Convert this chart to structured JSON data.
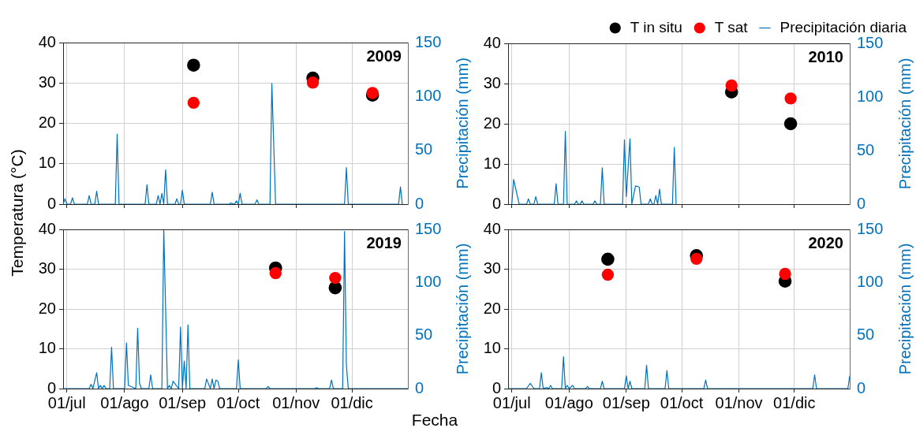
{
  "chart_data": [
    {
      "type": "scatter",
      "title": "2009",
      "y2label": "Precipitación (mm)",
      "xlim": [
        "--06-29",
        "--12-31"
      ],
      "xticks": [
        {
          "value": "--07-01",
          "label": "01/jul"
        },
        {
          "value": "--08-01",
          "label": "01/ago"
        },
        {
          "value": "--09-01",
          "label": "01/sep"
        },
        {
          "value": "--10-01",
          "label": "01/oct"
        },
        {
          "value": "--11-01",
          "label": "01/nov"
        },
        {
          "value": "--12-01",
          "label": "01/dic"
        }
      ],
      "ylim": [
        0,
        40
      ],
      "yticks": [
        0,
        10,
        20,
        30,
        40
      ],
      "y2lim": [
        0,
        150
      ],
      "y2ticks": [
        0,
        50,
        100,
        150
      ],
      "grid": true,
      "marker": "circle",
      "tick_labels": "y",
      "series": [
        {
          "type": "scatter",
          "color": "#000000",
          "x": [
            "--09-07",
            "--11-10",
            "--12-12"
          ],
          "values": [
            34.4,
            31.2,
            27.0
          ]
        },
        {
          "type": "scatter",
          "color": "#ff0000",
          "x": [
            "--09-07",
            "--11-10",
            "--12-12"
          ],
          "values": [
            25.1,
            30.1,
            27.5
          ]
        },
        {
          "type": "line",
          "axis": "y2",
          "marker": "none",
          "color": "#0072bd",
          "x": [
            "--06-29",
            "--06-30",
            "--07-01",
            "--07-03",
            "--07-04",
            "--07-05",
            "--07-12",
            "--07-13",
            "--07-14",
            "--07-16",
            "--07-17",
            "--07-18",
            "--07-27",
            "--07-28",
            "--07-29",
            "--08-12",
            "--08-13",
            "--08-14",
            "--08-18",
            "--08-19",
            "--08-20",
            "--08-21",
            "--08-22",
            "--08-23",
            "--08-24",
            "--08-28",
            "--08-29",
            "--08-30",
            "--08-31",
            "--09-01",
            "--09-02",
            "--09-16",
            "--09-17",
            "--09-18",
            "--09-26",
            "--09-27",
            "--09-29",
            "--09-30",
            "--10-01",
            "--10-02",
            "--10-03",
            "--10-10",
            "--10-11",
            "--10-12",
            "--10-18",
            "--10-19",
            "--10-21",
            "--11-27",
            "--11-28",
            "--11-29",
            "--12-26",
            "--12-27",
            "--12-28"
          ],
          "values": [
            0,
            5,
            0,
            0,
            6,
            0,
            0,
            8,
            0,
            0,
            12,
            0,
            0,
            65,
            0,
            0,
            18,
            0,
            0,
            8,
            0,
            10,
            0,
            32,
            0,
            0,
            5,
            0,
            0,
            13,
            0,
            0,
            11,
            0,
            0,
            1,
            0,
            3,
            0,
            10,
            0,
            0,
            4,
            0,
            0,
            112,
            0,
            0,
            34,
            0,
            0,
            16,
            0
          ]
        }
      ]
    },
    {
      "type": "scatter",
      "title": "2010",
      "y2label": "Precipitación (mm)",
      "legend": "top right",
      "xlim": [
        "--06-29",
        "--12-31"
      ],
      "xticks": [
        {
          "value": "--07-01",
          "label": "01/jul"
        },
        {
          "value": "--08-01",
          "label": "01/ago"
        },
        {
          "value": "--09-01",
          "label": "01/sep"
        },
        {
          "value": "--10-01",
          "label": "01/oct"
        },
        {
          "value": "--11-01",
          "label": "01/nov"
        },
        {
          "value": "--12-01",
          "label": "01/dic"
        }
      ],
      "ylim": [
        0,
        40
      ],
      "yticks": [
        0,
        10,
        20,
        30,
        40
      ],
      "y2lim": [
        0,
        150
      ],
      "y2ticks": [
        0,
        50,
        100,
        150
      ],
      "grid": true,
      "marker": "circle",
      "tick_labels": "y",
      "series": [
        {
          "type": "scatter",
          "name": "T in situ",
          "color": "#000000",
          "x": [
            "--10-28",
            "--11-29"
          ],
          "values": [
            27.9,
            20.0
          ]
        },
        {
          "type": "scatter",
          "name": "T sat",
          "color": "#ff0000",
          "x": [
            "--10-28",
            "--11-29"
          ],
          "values": [
            29.5,
            26.3
          ]
        },
        {
          "type": "line",
          "name": "Precipitación diaria",
          "axis": "y2",
          "marker": "none",
          "color": "#0072bd",
          "x": [
            "--07-01",
            "--07-02",
            "--07-05",
            "--07-09",
            "--07-10",
            "--07-11",
            "--07-13",
            "--07-14",
            "--07-15",
            "--07-24",
            "--07-25",
            "--07-26",
            "--07-29",
            "--07-30",
            "--07-31",
            "--08-04",
            "--08-05",
            "--08-06",
            "--08-07",
            "--08-08",
            "--08-09",
            "--08-14",
            "--08-15",
            "--08-16",
            "--08-18",
            "--08-19",
            "--08-20",
            "--08-30",
            "--08-31",
            "--09-01",
            "--09-03",
            "--09-04",
            "--09-06",
            "--09-08",
            "--09-09",
            "--09-13",
            "--09-14",
            "--09-15",
            "--09-16",
            "--09-17",
            "--09-18",
            "--09-19",
            "--09-20",
            "--09-26",
            "--09-27",
            "--09-28"
          ],
          "values": [
            0,
            23,
            0,
            0,
            5,
            0,
            0,
            7,
            0,
            0,
            19,
            0,
            0,
            68,
            0,
            0,
            3,
            0,
            0,
            3,
            0,
            0,
            3,
            0,
            0,
            34,
            0,
            0,
            60,
            7,
            61,
            0,
            17,
            16,
            0,
            0,
            5,
            0,
            0,
            8,
            0,
            14,
            0,
            0,
            53,
            0
          ]
        }
      ]
    },
    {
      "type": "scatter",
      "title": "2019",
      "ylabel": "Temperatura (°C)",
      "xlabel": "Fecha",
      "y2label": "Precipitación (mm)",
      "xlim": [
        "--06-29",
        "--12-31"
      ],
      "xticks": [
        {
          "value": "--07-01",
          "label": "01/jul"
        },
        {
          "value": "--08-01",
          "label": "01/ago"
        },
        {
          "value": "--09-01",
          "label": "01/sep"
        },
        {
          "value": "--10-01",
          "label": "01/oct"
        },
        {
          "value": "--11-01",
          "label": "01/nov"
        },
        {
          "value": "--12-01",
          "label": "01/dic"
        }
      ],
      "ylim": [
        0,
        40
      ],
      "yticks": [
        0,
        10,
        20,
        30,
        40
      ],
      "y2lim": [
        0,
        150
      ],
      "y2ticks": [
        0,
        50,
        100,
        150
      ],
      "grid": true,
      "marker": "circle",
      "series": [
        {
          "type": "scatter",
          "color": "#000000",
          "x": [
            "--10-21",
            "--11-22"
          ],
          "values": [
            30.3,
            25.3
          ]
        },
        {
          "type": "scatter",
          "color": "#ff0000",
          "x": [
            "--10-21",
            "--11-22"
          ],
          "values": [
            29.0,
            27.8
          ]
        },
        {
          "type": "line",
          "axis": "y2",
          "marker": "none",
          "color": "#0072bd",
          "x": [
            "--06-29",
            "--07-13",
            "--07-14",
            "--07-15",
            "--07-17",
            "--07-18",
            "--07-19",
            "--07-20",
            "--07-21",
            "--07-22",
            "--07-24",
            "--07-25",
            "--07-26",
            "--08-01",
            "--08-02",
            "--08-03",
            "--08-07",
            "--08-08",
            "--08-09",
            "--08-10",
            "--08-14",
            "--08-15",
            "--08-16",
            "--08-21",
            "--08-22",
            "--08-24",
            "--08-25",
            "--08-26",
            "--08-27",
            "--08-30",
            "--08-31",
            "--09-01",
            "--09-02",
            "--09-03",
            "--09-04",
            "--09-05",
            "--09-13",
            "--09-14",
            "--09-16",
            "--09-17",
            "--09-18",
            "--09-19",
            "--09-20",
            "--09-21",
            "--09-30",
            "--10-01",
            "--10-02",
            "--10-16",
            "--10-17",
            "--10-18",
            "--11-11",
            "--11-12",
            "--11-13",
            "--11-19",
            "--11-20",
            "--11-21",
            "--11-26",
            "--11-27",
            "--11-28",
            "--11-29",
            "--12-31"
          ],
          "values": [
            0,
            0,
            4,
            0,
            15,
            0,
            3,
            0,
            3,
            0,
            0,
            39,
            0,
            0,
            43,
            3,
            0,
            57,
            5,
            0,
            0,
            13,
            0,
            0,
            150,
            0,
            3,
            0,
            7,
            0,
            58,
            0,
            26,
            0,
            60,
            0,
            0,
            9,
            0,
            9,
            0,
            8,
            7,
            0,
            0,
            27,
            0,
            0,
            2,
            0,
            0,
            1,
            0,
            0,
            8,
            0,
            0,
            148,
            22,
            0,
            0
          ]
        }
      ]
    },
    {
      "type": "scatter",
      "title": "2020",
      "y2label": "Precipitación (mm)",
      "xlim": [
        "--06-29",
        "--12-31"
      ],
      "xticks": [
        {
          "value": "--07-01",
          "label": "01/jul"
        },
        {
          "value": "--08-01",
          "label": "01/ago"
        },
        {
          "value": "--09-01",
          "label": "01/sep"
        },
        {
          "value": "--10-01",
          "label": "01/oct"
        },
        {
          "value": "--11-01",
          "label": "01/nov"
        },
        {
          "value": "--12-01",
          "label": "01/dic"
        }
      ],
      "ylim": [
        0,
        40
      ],
      "yticks": [
        0,
        10,
        20,
        30,
        40
      ],
      "y2lim": [
        0,
        150
      ],
      "y2ticks": [
        0,
        50,
        100,
        150
      ],
      "grid": true,
      "marker": "circle",
      "series": [
        {
          "type": "scatter",
          "color": "#000000",
          "x": [
            "--08-22",
            "--10-09",
            "--11-26"
          ],
          "values": [
            32.5,
            33.4,
            27.0
          ]
        },
        {
          "type": "scatter",
          "color": "#ff0000",
          "x": [
            "--08-22",
            "--10-09",
            "--11-26"
          ],
          "values": [
            28.6,
            32.6,
            28.8
          ]
        },
        {
          "type": "line",
          "axis": "y2",
          "marker": "none",
          "color": "#0072bd",
          "x": [
            "--06-29",
            "--07-09",
            "--07-11",
            "--07-13",
            "--07-16",
            "--07-17",
            "--07-18",
            "--07-20",
            "--07-21",
            "--07-22",
            "--07-23",
            "--07-28",
            "--07-29",
            "--07-30",
            "--07-31",
            "--08-01",
            "--08-03",
            "--08-04",
            "--08-10",
            "--08-11",
            "--08-12",
            "--08-18",
            "--08-19",
            "--08-20",
            "--08-31",
            "--09-01",
            "--09-02",
            "--09-03",
            "--09-04",
            "--09-11",
            "--09-12",
            "--09-13",
            "--09-22",
            "--09-23",
            "--09-24",
            "--10-13",
            "--10-14",
            "--10-15",
            "--12-11",
            "--12-12",
            "--12-13",
            "--12-30",
            "--12-31"
          ],
          "values": [
            0,
            0,
            5,
            0,
            0,
            15,
            0,
            1,
            0,
            3,
            0,
            0,
            30,
            0,
            3,
            0,
            3,
            0,
            0,
            2,
            0,
            0,
            7,
            0,
            0,
            12,
            0,
            7,
            0,
            0,
            22,
            0,
            0,
            17,
            0,
            0,
            8,
            0,
            0,
            13,
            0,
            0,
            12
          ]
        }
      ]
    }
  ]
}
